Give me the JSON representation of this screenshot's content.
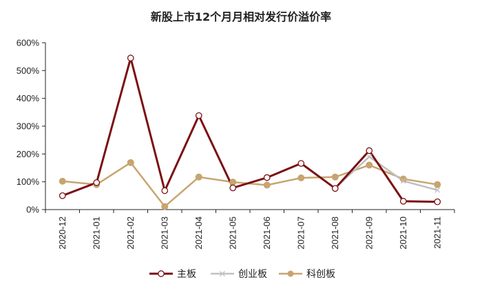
{
  "chart_data": {
    "type": "line",
    "title": "新股上市12个月月相对发行价溢价率",
    "categories": [
      "2020-12",
      "2021-01",
      "2021-02",
      "2021-03",
      "2021-04",
      "2021-05",
      "2021-06",
      "2021-07",
      "2021-08",
      "2021-09",
      "2021-10",
      "2021-11"
    ],
    "y_ticks": [
      "0%",
      "100%",
      "200%",
      "300%",
      "400%",
      "500%",
      "600%"
    ],
    "ylim": [
      0,
      6
    ],
    "grid": false,
    "legend_position": "bottom",
    "series": [
      {
        "name": "主板",
        "color": "#7b0f12",
        "marker": "hollow-circle",
        "values": [
          0.5,
          0.97,
          5.45,
          0.68,
          3.38,
          0.78,
          1.15,
          1.66,
          0.76,
          2.12,
          0.3,
          0.28
        ]
      },
      {
        "name": "创业板",
        "color": "#c0c0c0",
        "marker": "x",
        "values": [
          null,
          null,
          null,
          null,
          null,
          null,
          null,
          null,
          0.78,
          1.9,
          1.03,
          0.7
        ]
      },
      {
        "name": "科创板",
        "color": "#c8a46e",
        "marker": "filled-circle",
        "values": [
          1.02,
          0.9,
          1.69,
          0.11,
          1.17,
          0.99,
          0.88,
          1.14,
          1.17,
          1.6,
          1.1,
          0.9
        ]
      }
    ]
  }
}
